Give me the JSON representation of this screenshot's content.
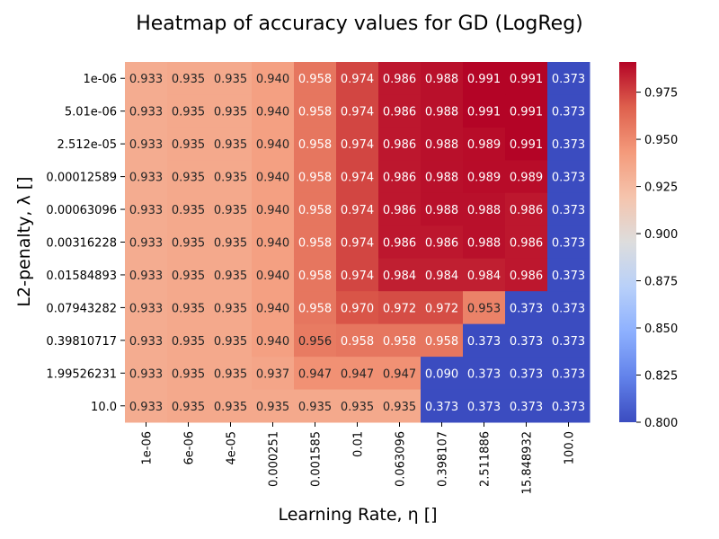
{
  "chart_data": {
    "type": "heatmap",
    "title": "Heatmap of accuracy values for GD (LogReg)",
    "xlabel": "Learning Rate, η []",
    "ylabel": "L2-penalty, λ []",
    "x_ticks": [
      "1e-06",
      "6e-06",
      "4e-05",
      "0.000251",
      "0.001585",
      "0.01",
      "0.063096",
      "0.398107",
      "2.511886",
      "15.848932",
      "100.0"
    ],
    "y_ticks": [
      "1e-06",
      "5.01e-06",
      "2.512e-05",
      "0.00012589",
      "0.00063096",
      "0.00316228",
      "0.01584893",
      "0.07943282",
      "0.39810717",
      "1.99526231",
      "10.0"
    ],
    "values": [
      [
        0.933,
        0.935,
        0.935,
        0.94,
        0.958,
        0.974,
        0.986,
        0.988,
        0.991,
        0.991,
        0.373
      ],
      [
        0.933,
        0.935,
        0.935,
        0.94,
        0.958,
        0.974,
        0.986,
        0.988,
        0.991,
        0.991,
        0.373
      ],
      [
        0.933,
        0.935,
        0.935,
        0.94,
        0.958,
        0.974,
        0.986,
        0.988,
        0.989,
        0.991,
        0.373
      ],
      [
        0.933,
        0.935,
        0.935,
        0.94,
        0.958,
        0.974,
        0.986,
        0.988,
        0.989,
        0.989,
        0.373
      ],
      [
        0.933,
        0.935,
        0.935,
        0.94,
        0.958,
        0.974,
        0.986,
        0.988,
        0.988,
        0.986,
        0.373
      ],
      [
        0.933,
        0.935,
        0.935,
        0.94,
        0.958,
        0.974,
        0.986,
        0.986,
        0.988,
        0.986,
        0.373
      ],
      [
        0.933,
        0.935,
        0.935,
        0.94,
        0.958,
        0.974,
        0.984,
        0.984,
        0.984,
        0.986,
        0.373
      ],
      [
        0.933,
        0.935,
        0.935,
        0.94,
        0.958,
        0.97,
        0.972,
        0.972,
        0.953,
        0.373,
        0.373
      ],
      [
        0.933,
        0.935,
        0.935,
        0.94,
        0.956,
        0.958,
        0.958,
        0.958,
        0.373,
        0.373,
        0.373
      ],
      [
        0.933,
        0.935,
        0.935,
        0.937,
        0.947,
        0.947,
        0.947,
        0.09,
        0.373,
        0.373,
        0.373
      ],
      [
        0.933,
        0.935,
        0.935,
        0.935,
        0.935,
        0.935,
        0.935,
        0.373,
        0.373,
        0.373,
        0.373
      ]
    ],
    "colormap": "coolwarm",
    "vmin": 0.8,
    "vmax": 0.991,
    "colorbar_ticks": [
      0.8,
      0.825,
      0.85,
      0.875,
      0.9,
      0.925,
      0.95,
      0.975
    ],
    "value_format_decimals": 3
  }
}
